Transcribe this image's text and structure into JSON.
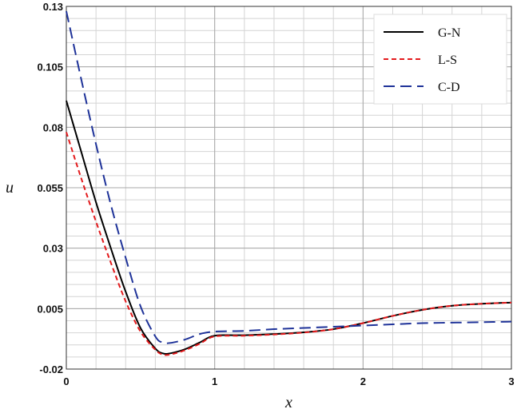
{
  "chart_data": {
    "type": "line",
    "title": "",
    "xlabel": "x",
    "ylabel": "u",
    "xlim": [
      0,
      3
    ],
    "ylim": [
      -0.02,
      0.13
    ],
    "x_ticks": [
      0,
      1,
      2,
      3
    ],
    "x_tick_labels": [
      "0",
      "1",
      "2",
      "3"
    ],
    "y_ticks": [
      -0.02,
      0.005,
      0.03,
      0.055,
      0.08,
      0.105,
      0.13
    ],
    "y_tick_labels": [
      "-0.02",
      "0.005",
      "0.03",
      "0.055",
      "0.08",
      "0.105",
      "0.13"
    ],
    "grid": true,
    "minor_grid_x_step": 0.2,
    "minor_grid_y_step": 0.005,
    "legend_position": "top-right",
    "series": [
      {
        "name": "G-N",
        "color": "#000000",
        "dash": "solid",
        "x": [
          0,
          0.1,
          0.2,
          0.3,
          0.4,
          0.5,
          0.6,
          0.65,
          0.7,
          0.8,
          0.9,
          1.0,
          1.2,
          1.4,
          1.6,
          1.8,
          2.0,
          2.2,
          2.4,
          2.6,
          2.8,
          3.0
        ],
        "y": [
          0.091,
          0.07,
          0.049,
          0.03,
          0.012,
          -0.003,
          -0.0115,
          -0.0135,
          -0.0135,
          -0.0118,
          -0.009,
          -0.0062,
          -0.006,
          -0.0055,
          -0.0048,
          -0.0035,
          -0.001,
          0.002,
          0.0045,
          0.0062,
          0.007,
          0.0075
        ]
      },
      {
        "name": "L-S",
        "color": "#e31a1c",
        "dash": "short",
        "x": [
          0,
          0.1,
          0.2,
          0.3,
          0.4,
          0.5,
          0.6,
          0.65,
          0.7,
          0.8,
          0.9,
          1.0,
          1.2,
          1.4,
          1.6,
          1.8,
          2.0,
          2.2,
          2.4,
          2.6,
          2.8,
          3.0
        ],
        "y": [
          0.078,
          0.059,
          0.041,
          0.024,
          0.008,
          -0.0045,
          -0.012,
          -0.014,
          -0.014,
          -0.0122,
          -0.0095,
          -0.0065,
          -0.0062,
          -0.0057,
          -0.0049,
          -0.0035,
          -0.001,
          0.002,
          0.0045,
          0.0062,
          0.007,
          0.0075
        ]
      },
      {
        "name": "C-D",
        "color": "#1f3399",
        "dash": "long",
        "x": [
          0,
          0.1,
          0.2,
          0.3,
          0.4,
          0.5,
          0.6,
          0.65,
          0.7,
          0.8,
          0.9,
          1.0,
          1.2,
          1.4,
          1.6,
          1.8,
          2.0,
          2.2,
          2.4,
          2.6,
          2.8,
          3.0
        ],
        "y": [
          0.128,
          0.1,
          0.073,
          0.048,
          0.026,
          0.006,
          -0.0065,
          -0.009,
          -0.0092,
          -0.0078,
          -0.0055,
          -0.0045,
          -0.0042,
          -0.0035,
          -0.003,
          -0.0025,
          -0.002,
          -0.0015,
          -0.001,
          -0.0008,
          -0.0006,
          -0.0004
        ]
      }
    ]
  }
}
